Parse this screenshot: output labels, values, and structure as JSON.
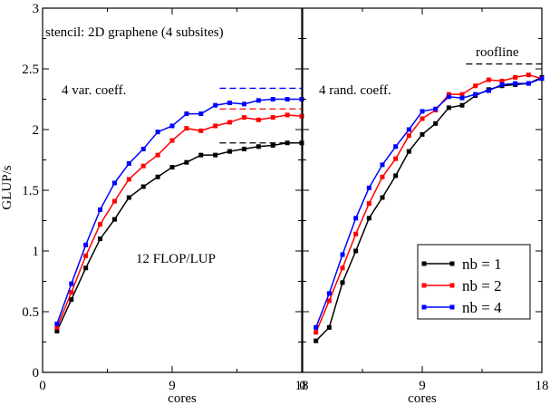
{
  "chart_data": [
    {
      "type": "line",
      "title": "",
      "xlabel": "cores",
      "ylabel": "GLUP/s",
      "xlim": [
        0,
        18
      ],
      "ylim": [
        0,
        3
      ],
      "x_ticks": [
        0,
        9,
        18
      ],
      "x_tick_labels": [
        "0",
        "9",
        "18"
      ],
      "y_ticks": [
        0,
        0.5,
        1,
        1.5,
        2,
        2.5,
        3
      ],
      "y_tick_labels": [
        "0",
        "0.5",
        "1",
        "1.5",
        "2",
        "2.5",
        "3"
      ],
      "grid": false,
      "annotations": [
        "stencil: 2D graphene (4 subsites)",
        "4 var. coeff.",
        "12 FLOP/LUP"
      ],
      "x": [
        1,
        2,
        3,
        4,
        5,
        6,
        7,
        8,
        9,
        10,
        11,
        12,
        13,
        14,
        15,
        16,
        17,
        18
      ],
      "series": [
        {
          "color": "#000000",
          "values": [
            0.34,
            0.6,
            0.86,
            1.1,
            1.26,
            1.44,
            1.53,
            1.61,
            1.69,
            1.73,
            1.79,
            1.79,
            1.82,
            1.84,
            1.86,
            1.87,
            1.89,
            1.89
          ]
        },
        {
          "color": "#ff0000",
          "values": [
            0.37,
            0.66,
            0.96,
            1.22,
            1.41,
            1.59,
            1.7,
            1.79,
            1.91,
            2.01,
            1.99,
            2.03,
            2.06,
            2.1,
            2.08,
            2.1,
            2.12,
            2.11
          ]
        },
        {
          "color": "#0000ff",
          "values": [
            0.4,
            0.73,
            1.05,
            1.34,
            1.56,
            1.72,
            1.84,
            1.98,
            2.03,
            2.13,
            2.13,
            2.2,
            2.22,
            2.21,
            2.24,
            2.25,
            2.25,
            2.25
          ]
        }
      ],
      "reference_lines": [
        {
          "color": "#000000",
          "y": 1.89,
          "x_range": [
            12.3,
            18
          ]
        },
        {
          "color": "#ff0000",
          "y": 2.17,
          "x_range": [
            12.3,
            18
          ]
        },
        {
          "color": "#0000ff",
          "y": 2.34,
          "x_range": [
            12.3,
            18
          ]
        }
      ]
    },
    {
      "type": "line",
      "title": "",
      "xlabel": "cores",
      "ylabel": "",
      "xlim": [
        0,
        18
      ],
      "ylim": [
        0,
        3
      ],
      "x_ticks": [
        0,
        9,
        18
      ],
      "x_tick_labels": [
        "0",
        "9",
        "18"
      ],
      "y_ticks": [
        0,
        0.5,
        1,
        1.5,
        2,
        2.5,
        3
      ],
      "grid": false,
      "annotations": [
        "4 rand. coeff.",
        "roofline"
      ],
      "legend": {
        "position": "bottom-right",
        "entries": [
          "nb = 1",
          "nb = 2",
          "nb = 4"
        ],
        "colors": [
          "#000000",
          "#ff0000",
          "#0000ff"
        ]
      },
      "x": [
        1,
        2,
        3,
        4,
        5,
        6,
        7,
        8,
        9,
        10,
        11,
        12,
        13,
        14,
        15,
        16,
        17,
        18
      ],
      "series": [
        {
          "name": "nb = 1",
          "color": "#000000",
          "values": [
            0.26,
            0.37,
            0.74,
            1.0,
            1.27,
            1.44,
            1.62,
            1.82,
            1.96,
            2.05,
            2.18,
            2.2,
            2.28,
            2.33,
            2.36,
            2.37,
            2.38,
            2.43
          ]
        },
        {
          "name": "nb = 2",
          "color": "#ff0000",
          "values": [
            0.33,
            0.59,
            0.86,
            1.14,
            1.39,
            1.61,
            1.76,
            1.95,
            2.09,
            2.16,
            2.29,
            2.29,
            2.36,
            2.41,
            2.4,
            2.43,
            2.45,
            2.42
          ]
        },
        {
          "name": "nb = 4",
          "color": "#0000ff",
          "values": [
            0.37,
            0.65,
            0.97,
            1.27,
            1.52,
            1.71,
            1.86,
            2.0,
            2.15,
            2.17,
            2.27,
            2.26,
            2.29,
            2.32,
            2.37,
            2.38,
            2.38,
            2.42
          ]
        }
      ],
      "reference_lines": [
        {
          "color": "#000000",
          "y": 2.54,
          "x_range": [
            12.3,
            18
          ]
        }
      ]
    }
  ]
}
